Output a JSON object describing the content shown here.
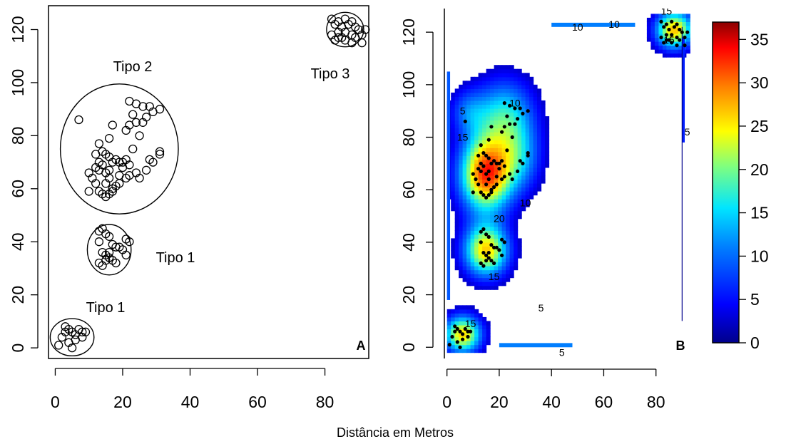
{
  "xlabel": "Distância em Metros",
  "chart_data": [
    {
      "type": "scatter",
      "panel_label": "A",
      "xlim": [
        -2,
        93
      ],
      "ylim": [
        -4,
        129
      ],
      "xticks": [
        0,
        20,
        40,
        60,
        80
      ],
      "yticks": [
        0,
        20,
        40,
        60,
        80,
        100,
        120
      ],
      "grid": false,
      "groups": [
        {
          "label": "Tipo 2",
          "center": [
            19,
            75
          ],
          "radii": [
            17.5,
            24.5
          ],
          "points": [
            [
              17,
              84
            ],
            [
              22,
              93
            ],
            [
              24,
              92
            ],
            [
              23,
              88
            ],
            [
              26,
              91
            ],
            [
              28,
              91
            ],
            [
              29,
              89
            ],
            [
              31,
              90
            ],
            [
              27,
              87
            ],
            [
              22,
              84
            ],
            [
              24,
              85
            ],
            [
              21,
              82
            ],
            [
              26,
              85
            ],
            [
              13,
              77
            ],
            [
              16,
              79
            ],
            [
              12,
              73
            ],
            [
              14,
              74
            ],
            [
              15,
              73
            ],
            [
              16,
              72
            ],
            [
              13,
              70
            ],
            [
              14,
              69
            ],
            [
              17,
              70
            ],
            [
              18,
              71
            ],
            [
              19,
              70
            ],
            [
              20,
              70
            ],
            [
              21,
              71
            ],
            [
              20,
              68
            ],
            [
              22,
              69
            ],
            [
              23,
              75
            ],
            [
              24,
              66
            ],
            [
              25,
              64
            ],
            [
              27,
              67
            ],
            [
              28,
              71
            ],
            [
              29,
              70
            ],
            [
              31,
              73
            ],
            [
              31,
              74
            ],
            [
              10,
              66
            ],
            [
              11,
              64
            ],
            [
              12,
              68
            ],
            [
              13,
              67
            ],
            [
              15,
              66
            ],
            [
              16,
              67
            ],
            [
              12,
              62
            ],
            [
              15,
              62
            ],
            [
              16,
              64
            ],
            [
              17,
              60
            ],
            [
              18,
              61
            ],
            [
              19,
              62
            ],
            [
              21,
              64
            ],
            [
              13,
              59
            ],
            [
              14,
              58
            ],
            [
              15,
              57
            ],
            [
              16,
              58
            ],
            [
              17,
              59
            ],
            [
              10,
              59
            ],
            [
              19,
              65
            ],
            [
              22,
              65
            ],
            [
              25,
              80
            ],
            [
              7,
              86
            ]
          ]
        },
        {
          "label": "Tipo 1",
          "center": [
            16,
            37
          ],
          "radii": [
            6.5,
            9.5
          ],
          "points": [
            [
              13,
              44
            ],
            [
              14,
              45
            ],
            [
              15,
              43
            ],
            [
              16,
              42
            ],
            [
              13,
              40
            ],
            [
              17,
              39
            ],
            [
              18,
              38
            ],
            [
              19,
              38
            ],
            [
              20,
              37
            ],
            [
              21,
              41
            ],
            [
              22,
              40
            ],
            [
              21,
              35
            ],
            [
              14,
              36
            ],
            [
              15,
              35
            ],
            [
              16,
              34
            ],
            [
              17,
              33
            ],
            [
              13,
              32
            ],
            [
              14,
              31
            ],
            [
              15,
              33
            ],
            [
              18,
              32
            ],
            [
              16,
              36
            ]
          ]
        },
        {
          "label": "Tipo 1",
          "center": [
            5,
            4
          ],
          "radii": [
            6.5,
            7
          ],
          "points": [
            [
              1,
              1
            ],
            [
              2,
              4
            ],
            [
              3,
              8
            ],
            [
              4,
              7
            ],
            [
              5,
              6
            ],
            [
              6,
              5
            ],
            [
              7,
              7
            ],
            [
              8,
              6
            ],
            [
              9,
              6
            ],
            [
              8,
              4
            ],
            [
              6,
              3
            ],
            [
              4,
              2
            ],
            [
              5,
              0
            ],
            [
              3,
              6
            ]
          ]
        },
        {
          "label": "Tipo 3",
          "center": [
            86,
            120
          ],
          "radii": [
            5.5,
            6.5
          ],
          "points": [
            [
              82,
              124
            ],
            [
              83,
              122
            ],
            [
              84,
              123
            ],
            [
              85,
              121
            ],
            [
              86,
              124
            ],
            [
              87,
              122
            ],
            [
              88,
              123
            ],
            [
              89,
              121
            ],
            [
              90,
              120
            ],
            [
              91,
              118
            ],
            [
              82,
              118
            ],
            [
              83,
              116
            ],
            [
              84,
              117
            ],
            [
              85,
              117
            ],
            [
              86,
              116
            ],
            [
              88,
              115
            ],
            [
              89,
              117
            ],
            [
              91,
              115
            ],
            [
              92,
              120
            ],
            [
              84,
              119
            ],
            [
              86,
              119
            ],
            [
              88,
              118
            ]
          ]
        }
      ]
    },
    {
      "type": "heatmap",
      "panel_label": "B",
      "xlim": [
        -1,
        94
      ],
      "ylim": [
        -4,
        129
      ],
      "xticks": [
        0,
        20,
        40,
        60,
        80
      ],
      "yticks": [
        0,
        20,
        40,
        60,
        80,
        100,
        120
      ],
      "colorbar": {
        "min": 0,
        "max": 37,
        "ticks": [
          0,
          5,
          10,
          15,
          20,
          25,
          30,
          35
        ]
      },
      "contour_labels": [
        "5",
        "10",
        "15",
        "20",
        "15",
        "5",
        "15",
        "10",
        "15",
        "10",
        "5",
        "5",
        "10",
        "15"
      ],
      "grid": false
    }
  ]
}
